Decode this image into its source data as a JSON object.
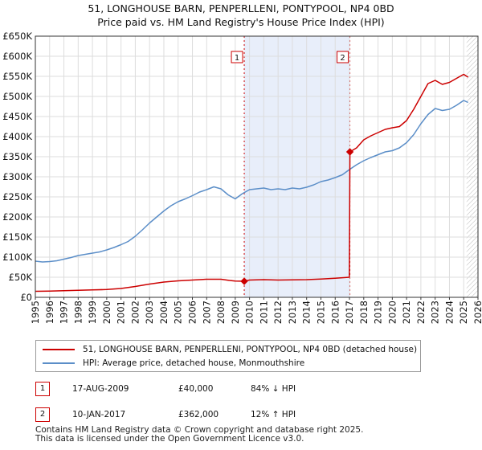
{
  "chart_data": {
    "type": "line",
    "title": "51, LONGHOUSE BARN, PENPERLLENI, PONTYPOOL, NP4 0BD",
    "subtitle": "Price paid vs. HM Land Registry's House Price Index (HPI)",
    "xlim": [
      1995,
      2026
    ],
    "ylim": [
      0,
      650000
    ],
    "x_ticks": [
      1995,
      1996,
      1997,
      1998,
      1999,
      2000,
      2001,
      2002,
      2003,
      2004,
      2005,
      2006,
      2007,
      2008,
      2009,
      2010,
      2011,
      2012,
      2013,
      2014,
      2015,
      2016,
      2017,
      2018,
      2019,
      2020,
      2021,
      2022,
      2023,
      2024,
      2025,
      2026
    ],
    "y_ticks": [
      0,
      50000,
      100000,
      150000,
      200000,
      250000,
      300000,
      350000,
      400000,
      450000,
      500000,
      550000,
      600000,
      650000
    ],
    "y_tick_labels": [
      "£0",
      "£50K",
      "£100K",
      "£150K",
      "£200K",
      "£250K",
      "£300K",
      "£350K",
      "£400K",
      "£450K",
      "£500K",
      "£550K",
      "£600K",
      "£650K"
    ],
    "grid": true,
    "shaded_range": [
      2009.63,
      2017.03
    ],
    "hatched_after": 2025.2,
    "series": [
      {
        "name": "51, LONGHOUSE BARN, PENPERLLENI, PONTYPOOL, NP4 0BD (detached house)",
        "color": "#cc0000",
        "points": [
          [
            1995.0,
            15000
          ],
          [
            1996.0,
            15500
          ],
          [
            1997.0,
            16500
          ],
          [
            1998.0,
            17500
          ],
          [
            1999.0,
            18500
          ],
          [
            2000.0,
            19500
          ],
          [
            2001.0,
            22000
          ],
          [
            2002.0,
            27000
          ],
          [
            2003.0,
            33000
          ],
          [
            2004.0,
            38000
          ],
          [
            2005.0,
            41000
          ],
          [
            2006.0,
            43000
          ],
          [
            2007.0,
            45000
          ],
          [
            2008.0,
            45000
          ],
          [
            2008.6,
            42000
          ],
          [
            2009.0,
            40500
          ],
          [
            2009.63,
            40000
          ],
          [
            2010.0,
            43000
          ],
          [
            2011.0,
            44000
          ],
          [
            2012.0,
            43000
          ],
          [
            2013.0,
            43500
          ],
          [
            2014.0,
            44000
          ],
          [
            2015.0,
            45500
          ],
          [
            2016.0,
            47500
          ],
          [
            2016.99,
            50000
          ],
          [
            2017.03,
            362000
          ],
          [
            2017.5,
            372000
          ],
          [
            2018.0,
            392000
          ],
          [
            2018.5,
            402000
          ],
          [
            2019.0,
            410000
          ],
          [
            2019.5,
            418000
          ],
          [
            2020.0,
            422000
          ],
          [
            2020.5,
            425000
          ],
          [
            2021.0,
            440000
          ],
          [
            2021.5,
            468000
          ],
          [
            2022.0,
            500000
          ],
          [
            2022.5,
            532000
          ],
          [
            2023.0,
            540000
          ],
          [
            2023.5,
            530000
          ],
          [
            2024.0,
            535000
          ],
          [
            2024.5,
            545000
          ],
          [
            2025.0,
            555000
          ],
          [
            2025.3,
            548000
          ]
        ]
      },
      {
        "name": "HPI: Average price, detached house, Monmouthshire",
        "color": "#5b8ec8",
        "points": [
          [
            1995.0,
            90000
          ],
          [
            1995.5,
            88000
          ],
          [
            1996.0,
            89000
          ],
          [
            1996.5,
            91000
          ],
          [
            1997.0,
            95000
          ],
          [
            1997.5,
            99000
          ],
          [
            1998.0,
            104000
          ],
          [
            1998.5,
            107000
          ],
          [
            1999.0,
            110000
          ],
          [
            1999.5,
            113000
          ],
          [
            2000.0,
            118000
          ],
          [
            2000.5,
            124000
          ],
          [
            2001.0,
            131000
          ],
          [
            2001.5,
            139000
          ],
          [
            2002.0,
            152000
          ],
          [
            2002.5,
            168000
          ],
          [
            2003.0,
            185000
          ],
          [
            2003.5,
            200000
          ],
          [
            2004.0,
            215000
          ],
          [
            2004.5,
            228000
          ],
          [
            2005.0,
            238000
          ],
          [
            2005.5,
            245000
          ],
          [
            2006.0,
            253000
          ],
          [
            2006.5,
            262000
          ],
          [
            2007.0,
            268000
          ],
          [
            2007.5,
            275000
          ],
          [
            2008.0,
            270000
          ],
          [
            2008.5,
            255000
          ],
          [
            2009.0,
            245000
          ],
          [
            2009.5,
            258000
          ],
          [
            2010.0,
            268000
          ],
          [
            2010.5,
            270000
          ],
          [
            2011.0,
            272000
          ],
          [
            2011.5,
            268000
          ],
          [
            2012.0,
            270000
          ],
          [
            2012.5,
            268000
          ],
          [
            2013.0,
            272000
          ],
          [
            2013.5,
            270000
          ],
          [
            2014.0,
            274000
          ],
          [
            2014.5,
            280000
          ],
          [
            2015.0,
            288000
          ],
          [
            2015.5,
            292000
          ],
          [
            2016.0,
            298000
          ],
          [
            2016.5,
            305000
          ],
          [
            2017.0,
            318000
          ],
          [
            2017.5,
            330000
          ],
          [
            2018.0,
            340000
          ],
          [
            2018.5,
            348000
          ],
          [
            2019.0,
            355000
          ],
          [
            2019.5,
            362000
          ],
          [
            2020.0,
            365000
          ],
          [
            2020.5,
            372000
          ],
          [
            2021.0,
            385000
          ],
          [
            2021.5,
            405000
          ],
          [
            2022.0,
            432000
          ],
          [
            2022.5,
            455000
          ],
          [
            2023.0,
            470000
          ],
          [
            2023.5,
            465000
          ],
          [
            2024.0,
            468000
          ],
          [
            2024.5,
            478000
          ],
          [
            2025.0,
            490000
          ],
          [
            2025.3,
            485000
          ]
        ]
      }
    ],
    "sales": [
      {
        "id": "1",
        "x": 2009.63,
        "y": 40000
      },
      {
        "id": "2",
        "x": 2017.03,
        "y": 362000
      }
    ]
  },
  "legend": {
    "property": "51, LONGHOUSE BARN, PENPERLLENI, PONTYPOOL, NP4 0BD (detached house)",
    "hpi": "HPI: Average price, detached house, Monmouthshire"
  },
  "sales_table": [
    {
      "num": "1",
      "date": "17-AUG-2009",
      "price": "£40,000",
      "hpi": "84% ↓ HPI"
    },
    {
      "num": "2",
      "date": "10-JAN-2017",
      "price": "£362,000",
      "hpi": "12% ↑ HPI"
    }
  ],
  "footer": {
    "line1": "Contains HM Land Registry data © Crown copyright and database right 2025.",
    "line2": "This data is licensed under the Open Government Licence v3.0."
  },
  "colors": {
    "property": "#cc0000",
    "hpi": "#5b8ec8",
    "shade": "#e8eefa",
    "grid": "#dddddd"
  }
}
